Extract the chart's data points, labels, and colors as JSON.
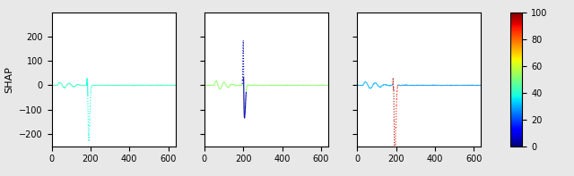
{
  "n_points": 638,
  "xlim": [
    0,
    638
  ],
  "xticks": [
    0,
    200,
    400,
    600
  ],
  "ylim": [
    -250,
    300
  ],
  "yticks": [
    -200,
    -100,
    0,
    100,
    200
  ],
  "ylabel": "SHAP",
  "colorbar_ticks": [
    0,
    20,
    40,
    60,
    80,
    100
  ],
  "colorbar_vmin": 0,
  "colorbar_vmax": 100,
  "figsize": [
    6.4,
    1.97
  ],
  "dpi": 100,
  "panel_bg": "white",
  "fig_bg": "#e8e8e8",
  "cmap": "jet"
}
